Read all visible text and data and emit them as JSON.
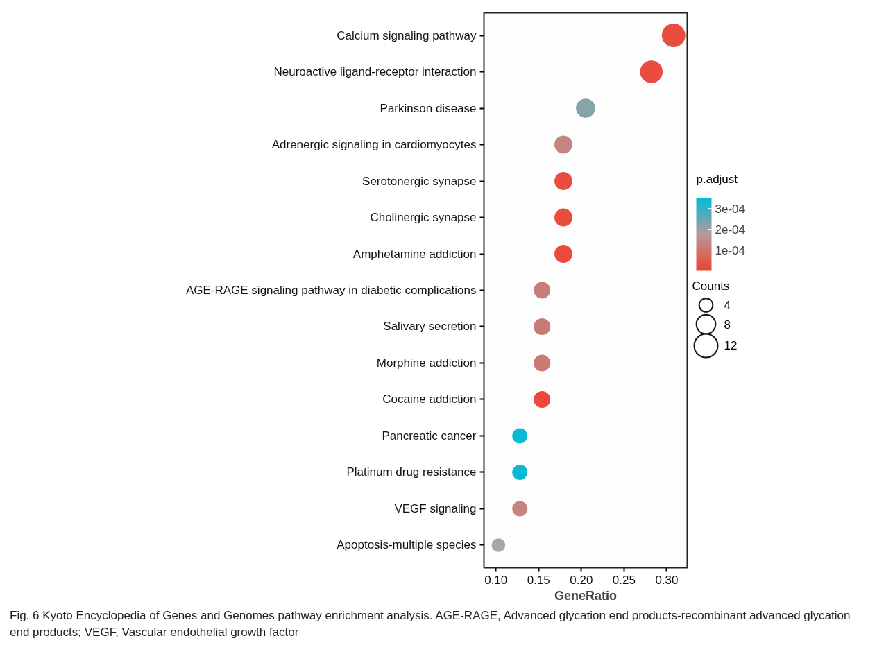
{
  "chart_data": {
    "type": "bubble",
    "xlabel": "GeneRatio",
    "legend_title": "Counts",
    "clabel": "p.adjust",
    "categories": [
      "Calcium signaling pathway",
      "Neuroactive ligand-receptor interaction",
      "Parkinson disease",
      "Adrenergic signaling in cardiomyocytes",
      "Serotonergic synapse",
      "Cholinergic synapse",
      "Amphetamine addiction",
      "AGE-RAGE signaling pathway in diabetic complications",
      "Salivary secretion",
      "Morphine addiction",
      "Cocaine addiction",
      "Pancreatic cancer",
      "Platinum drug resistance",
      "VEGF signaling",
      "Apoptosis-multiple species"
    ],
    "values": [
      0.308,
      0.282,
      0.205,
      0.179,
      0.179,
      0.179,
      0.179,
      0.154,
      0.154,
      0.154,
      0.154,
      0.128,
      0.128,
      0.128,
      0.103
    ],
    "sizes": [
      12,
      11,
      8,
      7,
      7,
      7,
      7,
      6,
      6,
      6,
      6,
      5,
      5,
      5,
      4
    ],
    "size_legend": [
      4,
      8,
      12
    ],
    "cvalues": [
      2e-05,
      2e-05,
      0.00022,
      0.00013,
      2e-05,
      2e-05,
      1e-05,
      0.00012,
      0.00011,
      0.00011,
      1e-05,
      0.00034,
      0.00034,
      0.00013,
      null
    ],
    "clim": [
      0,
      0.00035
    ],
    "cticks": [
      {
        "value": 0.0001,
        "label": "1e-04"
      },
      {
        "value": 0.0002,
        "label": "2e-04"
      },
      {
        "value": 0.0003,
        "label": "3e-04"
      }
    ],
    "orientation": "horizontal",
    "xlim": [
      0.086,
      0.324
    ],
    "xticks": [
      {
        "value": 0.1,
        "label": "0.10"
      },
      {
        "value": 0.15,
        "label": "0.15"
      },
      {
        "value": 0.2,
        "label": "0.20"
      },
      {
        "value": 0.25,
        "label": "0.25"
      },
      {
        "value": 0.3,
        "label": "0.30"
      }
    ],
    "grid": false,
    "annotations": [
      "Fig. 6  Kyoto Encyclopedia of Genes and Genomes pathway enrichment analysis. AGE-RAGE, Advanced glycation end products-recombinant advanced glycation end products; VEGF, Vascular endothelial growth factor"
    ]
  }
}
